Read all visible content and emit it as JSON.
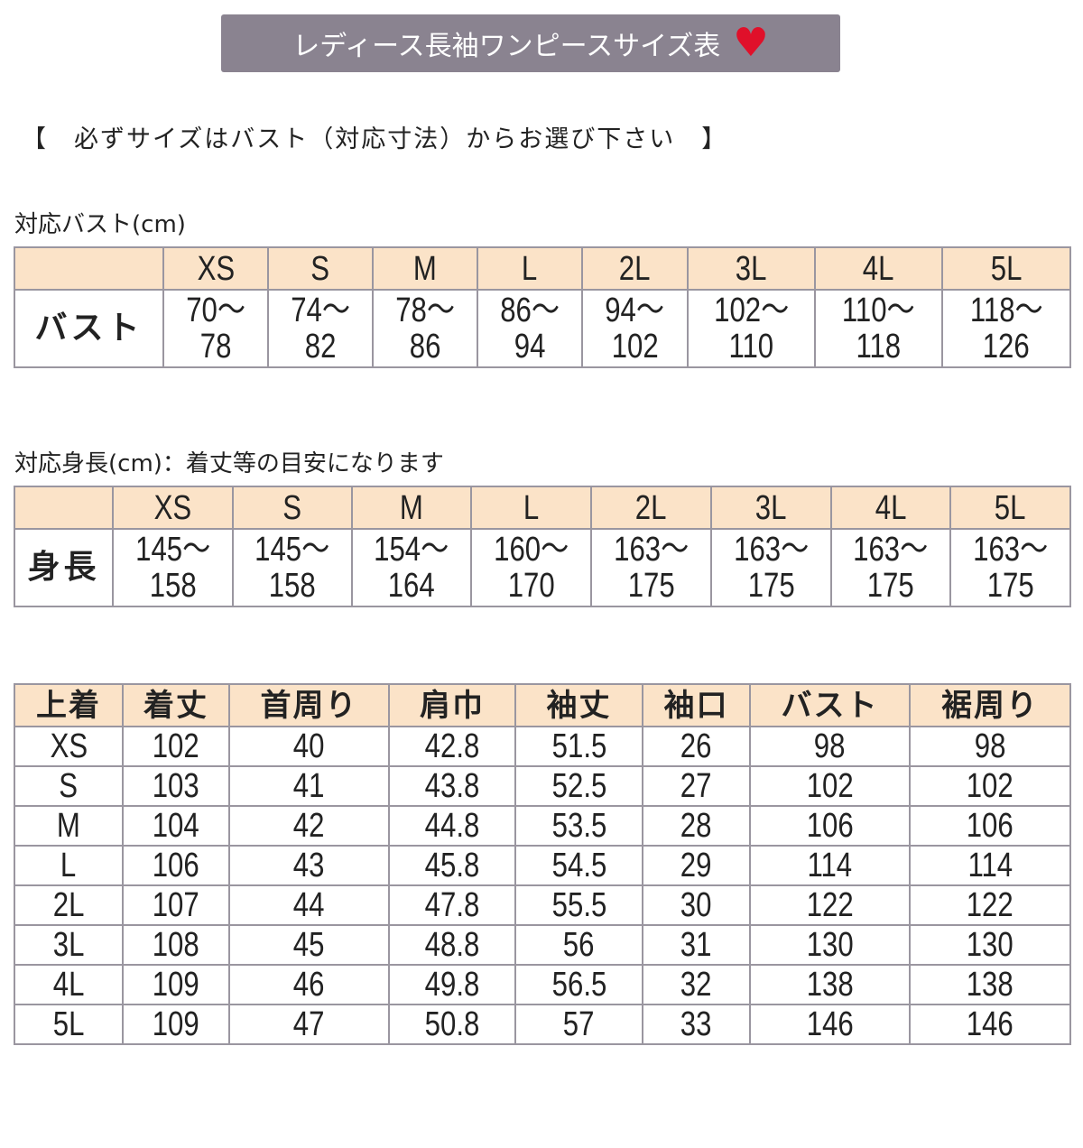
{
  "title": "レディース長袖ワンピースサイズ表",
  "title_icon": "heart-icon",
  "note": "【　必ずサイズはバスト（対応寸法）からお選び下さい　】",
  "bust_table": {
    "caption": "対応バスト(cm)",
    "row_label": "バスト",
    "sizes": [
      "XS",
      "S",
      "M",
      "L",
      "2L",
      "3L",
      "4L",
      "5L"
    ],
    "ranges": [
      [
        "70～",
        "78"
      ],
      [
        "74～",
        "82"
      ],
      [
        "78～",
        "86"
      ],
      [
        "86～",
        "94"
      ],
      [
        "94～",
        "102"
      ],
      [
        "102～",
        "110"
      ],
      [
        "110～",
        "118"
      ],
      [
        "118～",
        "126"
      ]
    ]
  },
  "height_table": {
    "caption": "対応身長(cm)：着丈等の目安になります",
    "row_label": "身長",
    "sizes": [
      "XS",
      "S",
      "M",
      "L",
      "2L",
      "3L",
      "4L",
      "5L"
    ],
    "ranges": [
      [
        "145～",
        "158"
      ],
      [
        "145～",
        "158"
      ],
      [
        "154～",
        "164"
      ],
      [
        "160～",
        "170"
      ],
      [
        "163～",
        "175"
      ],
      [
        "163～",
        "175"
      ],
      [
        "163～",
        "175"
      ],
      [
        "163～",
        "175"
      ]
    ]
  },
  "garment_table": {
    "headers": [
      "上着",
      "着丈",
      "首周り",
      "肩巾",
      "袖丈",
      "袖口",
      "バスト",
      "裾周り"
    ],
    "rows": [
      [
        "XS",
        "102",
        "40",
        "42.8",
        "51.5",
        "26",
        "98",
        "98"
      ],
      [
        "S",
        "103",
        "41",
        "43.8",
        "52.5",
        "27",
        "102",
        "102"
      ],
      [
        "M",
        "104",
        "42",
        "44.8",
        "53.5",
        "28",
        "106",
        "106"
      ],
      [
        "L",
        "106",
        "43",
        "45.8",
        "54.5",
        "29",
        "114",
        "114"
      ],
      [
        "2L",
        "107",
        "44",
        "47.8",
        "55.5",
        "30",
        "122",
        "122"
      ],
      [
        "3L",
        "108",
        "45",
        "48.8",
        "56",
        "31",
        "130",
        "130"
      ],
      [
        "4L",
        "109",
        "46",
        "49.8",
        "56.5",
        "32",
        "138",
        "138"
      ],
      [
        "5L",
        "109",
        "47",
        "50.8",
        "57",
        "33",
        "146",
        "146"
      ]
    ]
  },
  "colors": {
    "title_bg": "#8a8390",
    "header_bg": "#fbe3c8",
    "heart": "#e0102a"
  }
}
